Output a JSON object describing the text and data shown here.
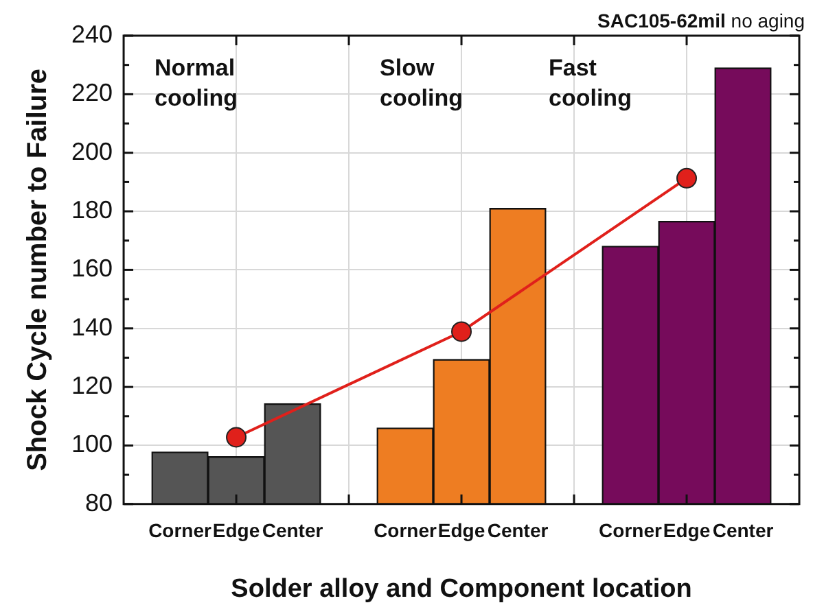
{
  "chart_data": {
    "type": "bar",
    "title": "SAC105-62mil",
    "subtitle": "no aging",
    "xlabel": "Solder alloy and Component location",
    "ylabel": "Shock Cycle number to Failure",
    "categories": [
      "Corner",
      "Edge",
      "Center",
      null,
      "Corner",
      "Edge",
      "Center",
      null,
      "Corner",
      "Edge",
      "Center"
    ],
    "series": [
      {
        "type": "bar",
        "colors": [
          "#555555",
          "#555555",
          "#555555",
          "#ffffff",
          "#ee7d22",
          "#ee7d22",
          "#ee7d22",
          "#ffffff",
          "#760b5b",
          "#760b5b",
          "#760b5b"
        ],
        "values": [
          97.8,
          96.2,
          114.3,
          null,
          106.0,
          129.4,
          181.0,
          null,
          168.1,
          176.6,
          229.0
        ]
      },
      {
        "type": "line",
        "color": "#e0201b",
        "marker": "circle",
        "values": [
          null,
          102.8,
          null,
          null,
          null,
          138.9,
          null,
          null,
          null,
          191.3,
          null
        ]
      }
    ],
    "annotations": [
      "Normal cooling",
      "Slow cooling",
      "Fast cooling"
    ],
    "ylim": [
      80,
      240
    ],
    "yticks": [
      80,
      {
        "value": 90,
        "label": null
      },
      100,
      {
        "value": 110,
        "label": null
      },
      120,
      {
        "value": 130,
        "label": null
      },
      140,
      {
        "value": 150,
        "label": null
      },
      160,
      {
        "value": 170,
        "label": null
      },
      180,
      {
        "value": 190,
        "label": null
      },
      200,
      {
        "value": 210,
        "label": null
      },
      220,
      {
        "value": 230,
        "label": null
      },
      240
    ],
    "grid": true,
    "legend": false
  }
}
